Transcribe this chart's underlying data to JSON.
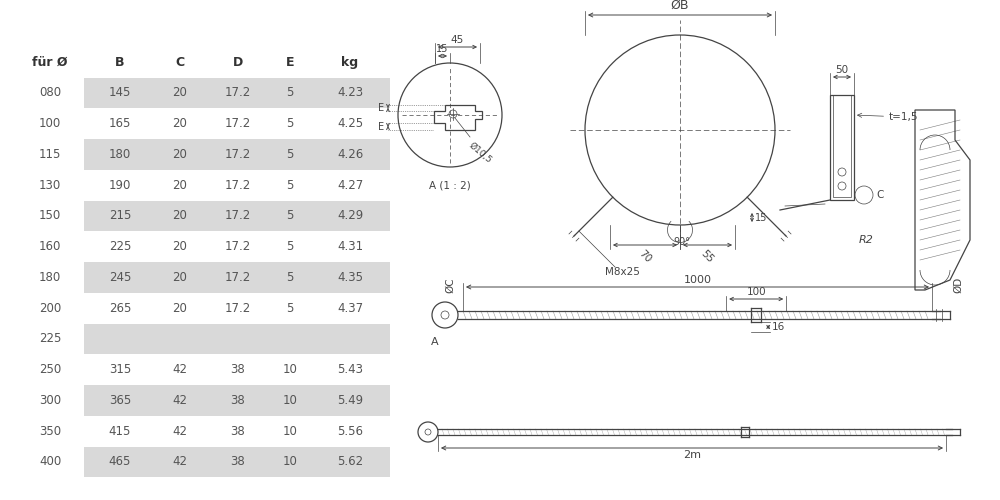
{
  "table_headers": [
    "für Ø",
    "B",
    "C",
    "D",
    "E",
    "kg"
  ],
  "table_rows": [
    [
      "080",
      "145",
      "20",
      "17.2",
      "5",
      "4.23"
    ],
    [
      "100",
      "165",
      "20",
      "17.2",
      "5",
      "4.25"
    ],
    [
      "115",
      "180",
      "20",
      "17.2",
      "5",
      "4.26"
    ],
    [
      "130",
      "190",
      "20",
      "17.2",
      "5",
      "4.27"
    ],
    [
      "150",
      "215",
      "20",
      "17.2",
      "5",
      "4.29"
    ],
    [
      "160",
      "225",
      "20",
      "17.2",
      "5",
      "4.31"
    ],
    [
      "180",
      "245",
      "20",
      "17.2",
      "5",
      "4.35"
    ],
    [
      "200",
      "265",
      "20",
      "17.2",
      "5",
      "4.37"
    ],
    [
      "225",
      "",
      "",
      "",
      "",
      ""
    ],
    [
      "250",
      "315",
      "42",
      "38",
      "10",
      "5.43"
    ],
    [
      "300",
      "365",
      "42",
      "38",
      "10",
      "5.49"
    ],
    [
      "350",
      "415",
      "42",
      "38",
      "10",
      "5.56"
    ],
    [
      "400",
      "465",
      "42",
      "38",
      "10",
      "5.62"
    ]
  ],
  "shaded_rows": [
    0,
    2,
    4,
    6,
    8,
    10,
    12
  ],
  "bg_color": "#ffffff",
  "shade_color": "#d9d9d9",
  "text_color": "#555555",
  "header_color": "#333333",
  "line_color": "#444444"
}
